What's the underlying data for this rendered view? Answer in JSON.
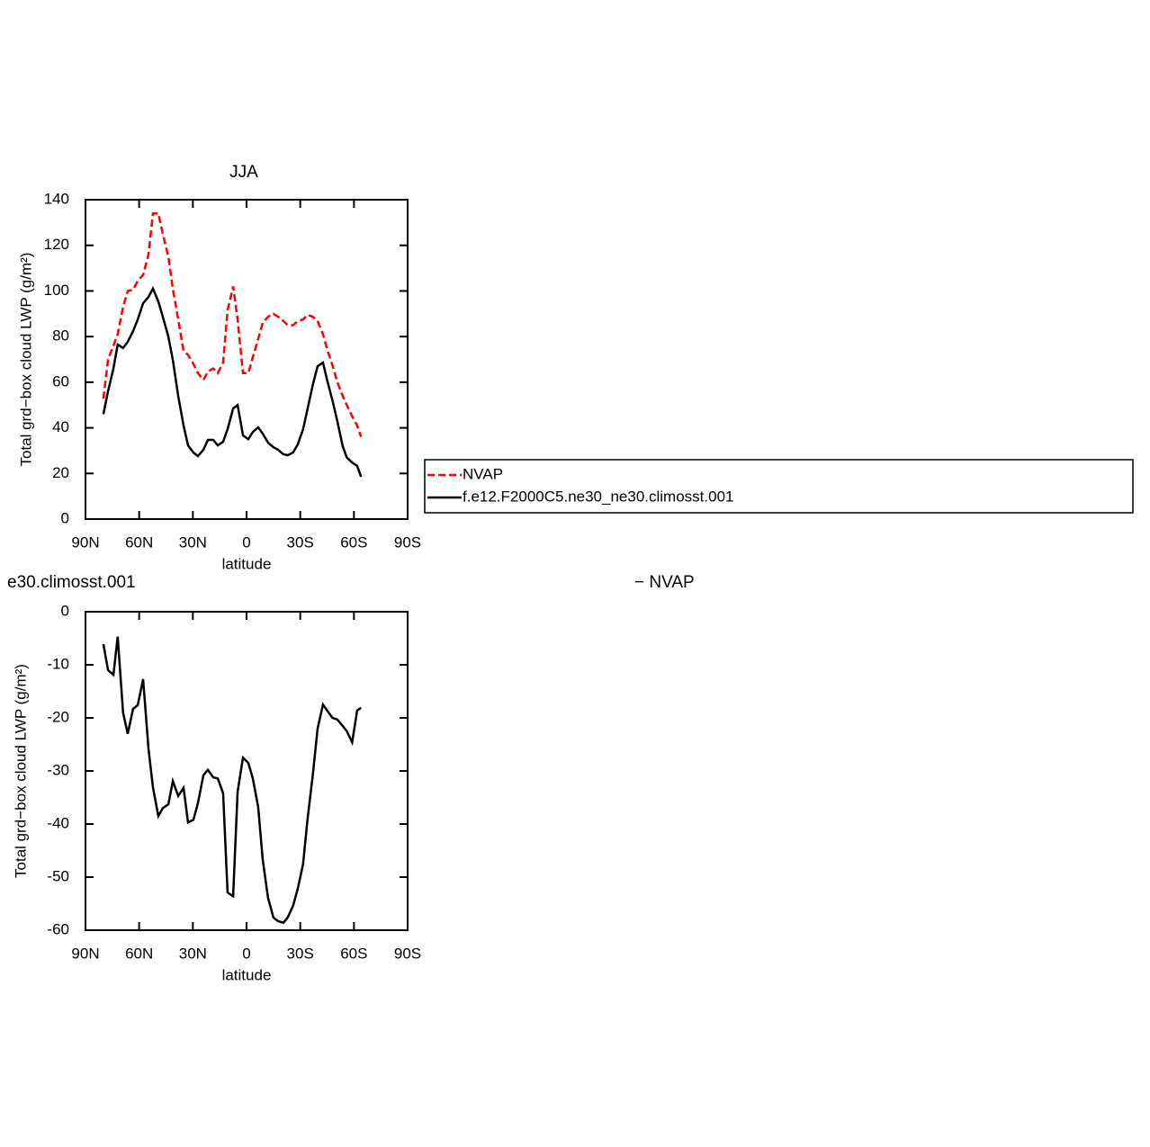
{
  "chart_data": [
    {
      "type": "line",
      "title": "JJA",
      "xlabel": "latitude",
      "ylabel": "Total grd−box cloud LWP (g/m²)",
      "x": [
        80,
        77.4,
        74.4,
        72,
        69,
        66.4,
        63.4,
        60.8,
        57.8,
        54.8,
        52.3,
        49.3,
        46.8,
        43.7,
        41.2,
        38.2,
        35.2,
        32.7,
        29.7,
        27.2,
        24.1,
        21.6,
        18.6,
        16.1,
        13.1,
        10.6,
        7.5,
        5,
        2,
        -1,
        -3.5,
        -6.5,
        -9,
        -12,
        -15,
        -17.6,
        -20.6,
        -23,
        -26,
        -28.6,
        -31.6,
        -34,
        -37,
        -39.7,
        -42.7,
        -45,
        -48,
        -50.7,
        -53.7,
        -56,
        -59,
        -61.8,
        -64
      ],
      "series": [
        {
          "name": "NVAP",
          "color": "#ff0000",
          "dashed": true,
          "values": [
            52.8,
            70,
            76,
            81,
            93,
            100,
            100.5,
            104.5,
            107,
            116,
            134,
            134,
            125,
            115,
            101,
            87.5,
            73.7,
            72,
            68,
            64,
            61,
            64.7,
            66,
            64,
            68.6,
            91.5,
            102,
            87.5,
            64,
            64,
            71,
            79,
            86,
            88.7,
            90,
            88.7,
            86.8,
            85,
            85,
            86.8,
            87.5,
            89.5,
            88.7,
            86.8,
            81,
            74.5,
            67.4,
            60,
            54,
            50,
            45,
            41,
            36
          ]
        },
        {
          "name": "f.e12.F2000C5.ne30_ne30.climosst.001",
          "color": "#000000",
          "dashed": false,
          "values": [
            46,
            56,
            66,
            76.5,
            75,
            77.7,
            82.4,
            87.5,
            94.6,
            97.4,
            101,
            95.4,
            88.7,
            80,
            69.8,
            54,
            41,
            32.3,
            29.2,
            27.6,
            30.4,
            34.7,
            34.7,
            32.3,
            33.9,
            39.4,
            48.5,
            50,
            36.7,
            35,
            38.2,
            40.2,
            37.5,
            33.5,
            31.5,
            30.4,
            28.4,
            28,
            29.2,
            32.7,
            39.4,
            48,
            58.8,
            67,
            68.6,
            61,
            52,
            43,
            32,
            27,
            24.8,
            23.3,
            18.5
          ]
        }
      ],
      "xlim": [
        90,
        -90
      ],
      "xticks": [
        {
          "value": 90,
          "label": "90N"
        },
        {
          "value": 60,
          "label": "60N"
        },
        {
          "value": 30,
          "label": "30N"
        },
        0,
        {
          "value": -30,
          "label": "30S"
        },
        {
          "value": -60,
          "label": "60S"
        },
        {
          "value": -90,
          "label": "90S"
        }
      ],
      "ylim": [
        0,
        140
      ],
      "yticks": [
        0,
        20,
        40,
        60,
        80,
        100,
        120,
        140
      ],
      "legend": "right"
    },
    {
      "type": "line",
      "title": "e30.climosst.001",
      "annotations": [
        "−  NVAP"
      ],
      "xlabel": "latitude",
      "ylabel": "Total grd−box cloud LWP (g/m²)",
      "x": [
        80,
        77.4,
        74.4,
        72,
        69,
        66.4,
        63.4,
        60.8,
        57.8,
        54.8,
        52.3,
        49.3,
        46.8,
        43.7,
        41.2,
        38.2,
        35.2,
        32.7,
        29.7,
        27.2,
        24.1,
        21.6,
        18.6,
        16.1,
        13.1,
        10.6,
        7.5,
        5,
        2,
        -1,
        -3.5,
        -6.5,
        -9,
        -12,
        -15,
        -17.6,
        -20.6,
        -23,
        -26,
        -28.6,
        -31.6,
        -34,
        -37,
        -39.7,
        -42.7,
        -45,
        -48,
        -50.7,
        -53.7,
        -56,
        -59,
        -61.8,
        -64
      ],
      "series": [
        {
          "color": "#000000",
          "dashed": false,
          "values": [
            -6.1,
            -11,
            -11.9,
            -4.7,
            -19,
            -23,
            -18.3,
            -17.6,
            -12.7,
            -25.8,
            -33.1,
            -38.5,
            -37,
            -36.3,
            -31.9,
            -34.7,
            -33.2,
            -39.7,
            -39.2,
            -36.1,
            -30.8,
            -29.8,
            -31.2,
            -31.4,
            -34.2,
            -52.9,
            -53.6,
            -33.9,
            -27.5,
            -28.5,
            -31.4,
            -36.8,
            -46.6,
            -53.9,
            -57.6,
            -58.3,
            -58.6,
            -57.6,
            -55.4,
            -52.2,
            -47.5,
            -39.3,
            -30.8,
            -22,
            -17.5,
            -18.6,
            -20,
            -20.3,
            -21.5,
            -22.5,
            -24.6,
            -18.6,
            -18.1
          ]
        }
      ],
      "xlim": [
        90,
        -90
      ],
      "xticks": [
        {
          "value": 90,
          "label": "90N"
        },
        {
          "value": 60,
          "label": "60N"
        },
        {
          "value": 30,
          "label": "30N"
        },
        0,
        {
          "value": -30,
          "label": "30S"
        },
        {
          "value": -60,
          "label": "60S"
        },
        {
          "value": -90,
          "label": "90S"
        }
      ],
      "ylim": [
        -60,
        0
      ],
      "yticks": [
        -60,
        -50,
        -40,
        -30,
        -20,
        -10,
        0
      ]
    }
  ]
}
